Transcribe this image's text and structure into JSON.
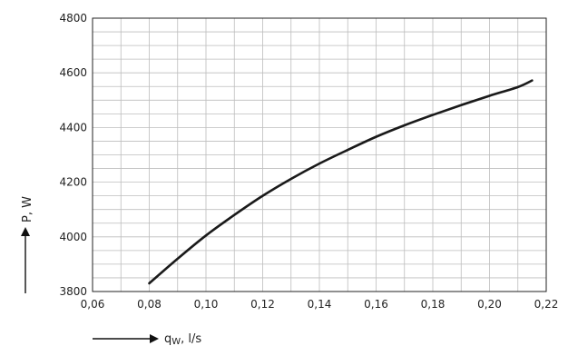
{
  "chart_data": {
    "type": "line",
    "xlabel_main": "q",
    "xlabel_sub": "W",
    "xlabel_unit": ", l/s",
    "ylabel": "P, W",
    "xlim": [
      0.06,
      0.22
    ],
    "ylim": [
      3800,
      4800
    ],
    "x_ticks": [
      "0,06",
      "0,08",
      "0,10",
      "0,12",
      "0,14",
      "0,16",
      "0,18",
      "0,20",
      "0,22"
    ],
    "y_ticks": [
      "4800",
      "4600",
      "4400",
      "4200",
      "4000",
      "3800"
    ],
    "x_tick_values": [
      0.06,
      0.08,
      0.1,
      0.12,
      0.14,
      0.16,
      0.18,
      0.2,
      0.22
    ],
    "y_tick_values": [
      4800,
      4600,
      4400,
      4200,
      4000,
      3800
    ],
    "grid": true,
    "series": [
      {
        "color": "#1a1a1a",
        "x": [
          0.08,
          0.09,
          0.1,
          0.11,
          0.12,
          0.13,
          0.14,
          0.15,
          0.16,
          0.17,
          0.18,
          0.19,
          0.2,
          0.21,
          0.215
        ],
        "y": [
          3830,
          3920,
          4005,
          4080,
          4150,
          4212,
          4268,
          4318,
          4366,
          4408,
          4446,
          4482,
          4516,
          4548,
          4572
        ]
      }
    ]
  }
}
